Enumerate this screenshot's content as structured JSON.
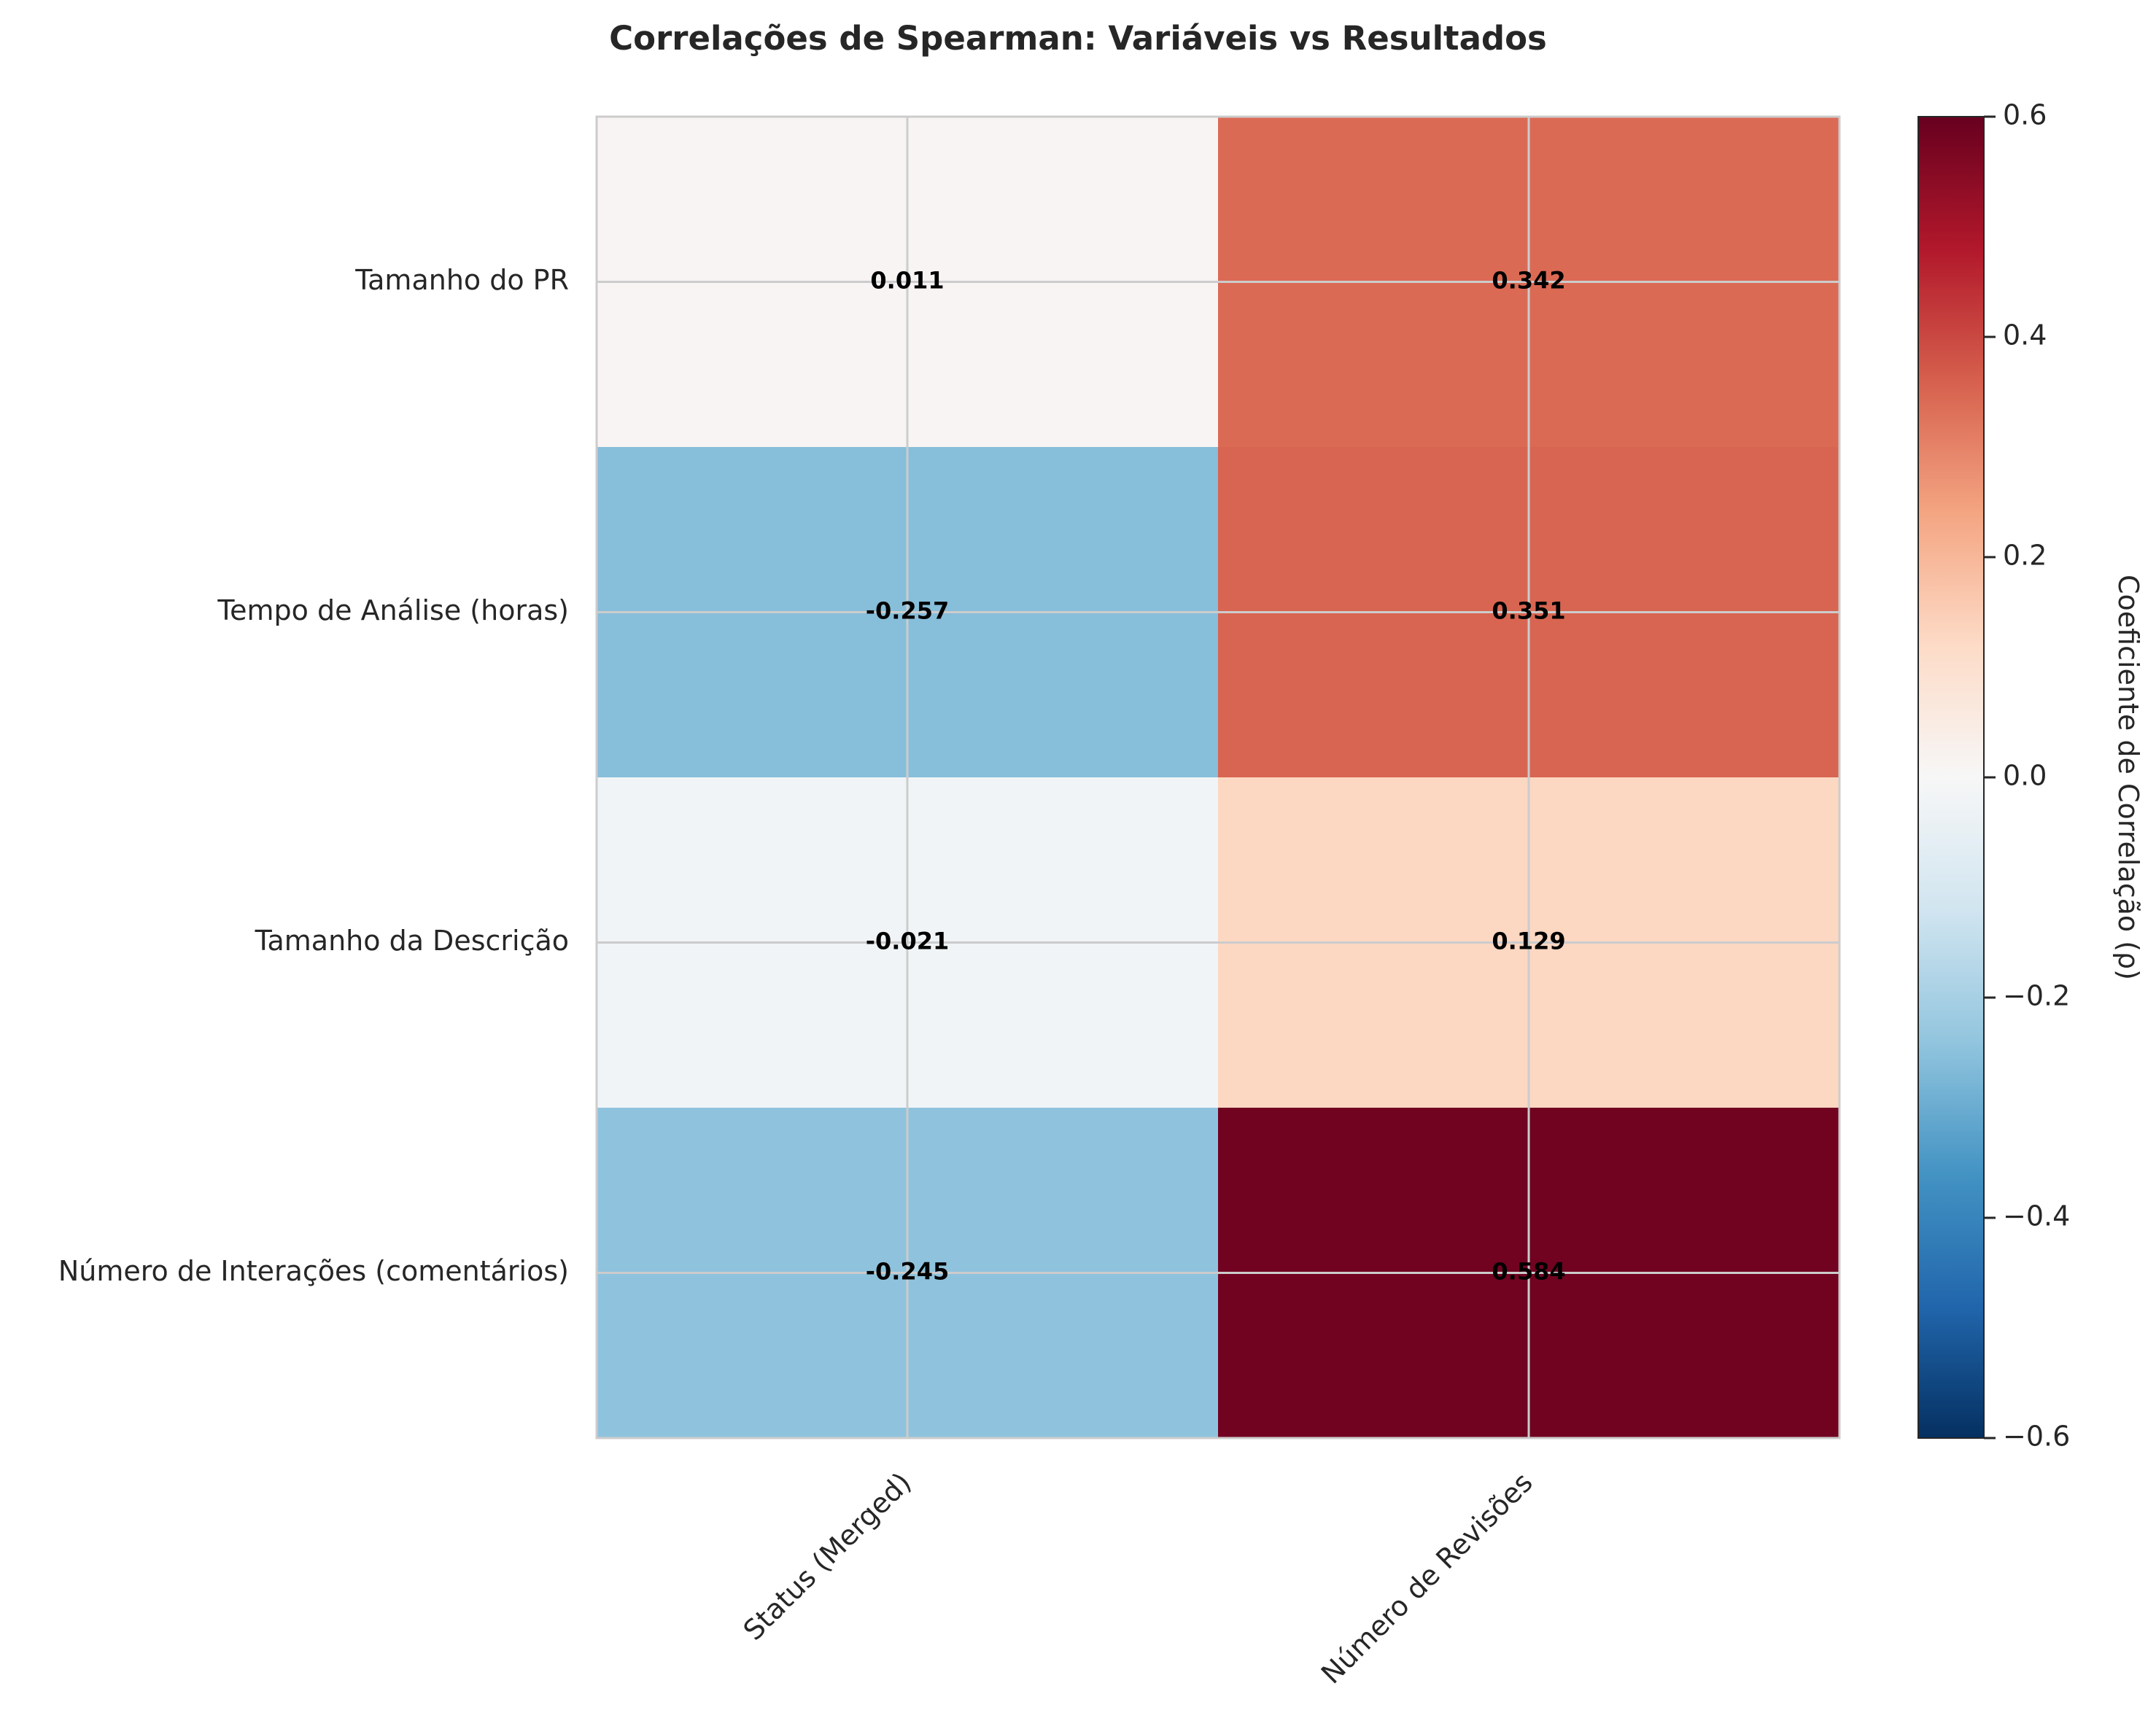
{
  "chart_data": {
    "type": "heatmap",
    "title": "Correlações de Spearman: Variáveis vs Resultados",
    "rows": [
      "Tamanho do PR",
      "Tempo de Análise (horas)",
      "Tamanho da Descrição",
      "Número de Interações (comentários)"
    ],
    "columns": [
      "Status (Merged)",
      "Número de Revisões"
    ],
    "values": [
      [
        0.011,
        0.342
      ],
      [
        -0.257,
        0.351
      ],
      [
        -0.021,
        0.129
      ],
      [
        -0.245,
        0.584
      ]
    ],
    "value_labels": [
      [
        "0.011",
        "0.342"
      ],
      [
        "-0.257",
        "0.351"
      ],
      [
        "-0.021",
        "0.129"
      ],
      [
        "-0.245",
        "0.584"
      ]
    ],
    "colormap": "RdBu_r",
    "vmin": -0.6,
    "vmax": 0.6,
    "grid": true,
    "colorbar": {
      "label": "Coeficiente de Correlação (ρ)",
      "ticks": [
        0.6,
        0.4,
        0.2,
        0.0,
        -0.2,
        -0.4,
        -0.6
      ],
      "tick_labels": [
        "0.6",
        "0.4",
        "0.2",
        "0.0",
        "−0.2",
        "−0.4",
        "−0.6"
      ],
      "position": "right"
    },
    "colors": {
      "grid": "#cccccc",
      "frame": "#cccccc",
      "text": "#262626",
      "cell_text": "#000000"
    }
  }
}
